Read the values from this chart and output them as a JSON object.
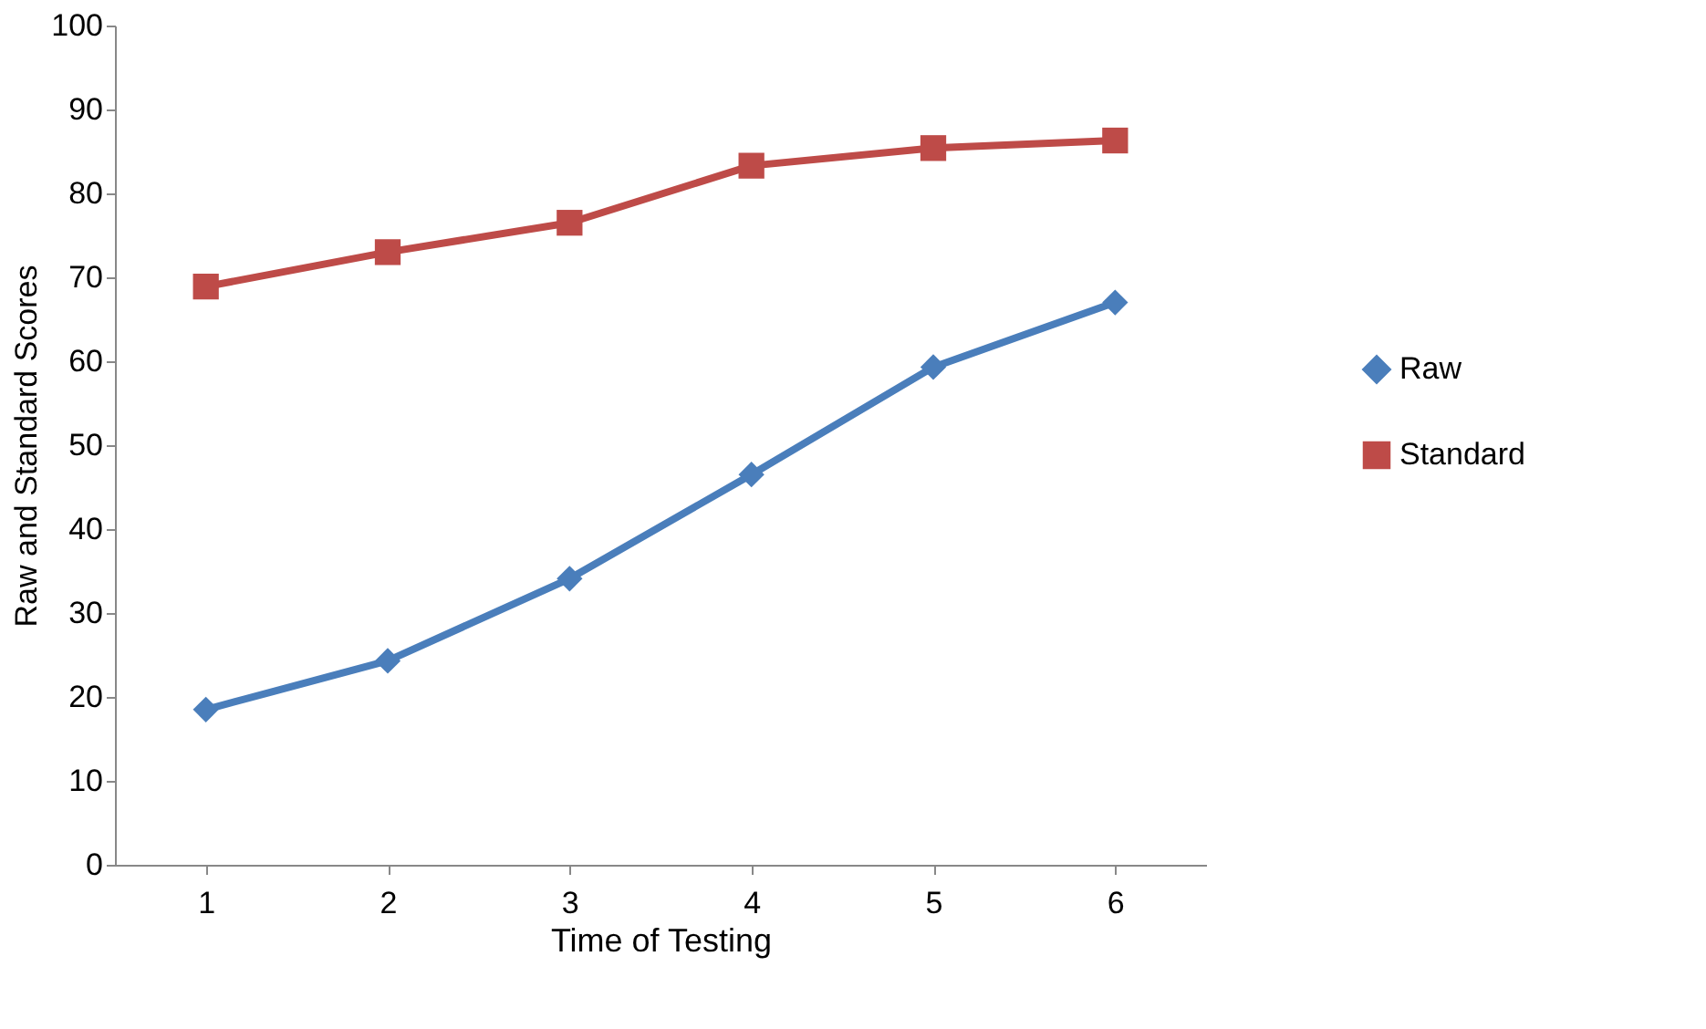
{
  "chart_data": {
    "type": "line",
    "xlabel": "Time of Testing",
    "ylabel": "Raw and Standard Scores",
    "categories": [
      "1",
      "2",
      "3",
      "4",
      "5",
      "6"
    ],
    "series": [
      {
        "name": "Raw",
        "color": "#4a7ebb",
        "marker": "diamond",
        "values": [
          18.5,
          24.3,
          34.1,
          46.5,
          59.3,
          67
        ]
      },
      {
        "name": "Standard",
        "color": "#be4b48",
        "marker": "square",
        "values": [
          68.9,
          73,
          76.5,
          83.3,
          85.4,
          86.3
        ]
      }
    ],
    "ylim": [
      0,
      100
    ],
    "yticks": [
      0,
      10,
      20,
      30,
      40,
      50,
      60,
      70,
      80,
      90,
      100
    ],
    "grid": false,
    "legend": "right",
    "line_style": "solid"
  }
}
